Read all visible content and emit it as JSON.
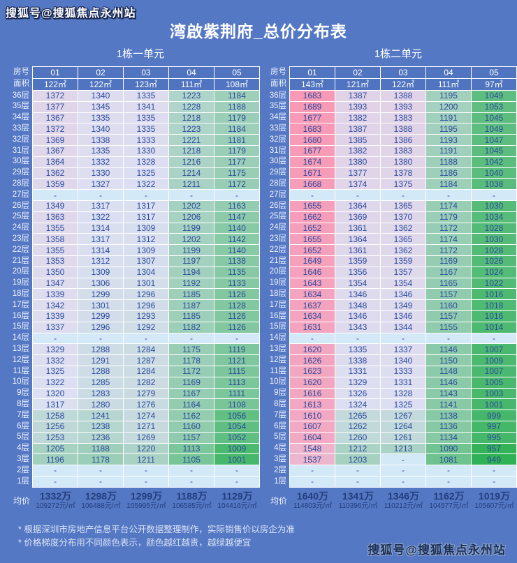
{
  "page": {
    "watermark_top": "搜狐号@搜狐焦点永州站",
    "watermark_bottom": "搜狐号@搜狐焦点永州站",
    "title": "湾啟紫荆府_总价分布表",
    "notes": [
      "* 根据深圳市房地产信息平台公开数据整理制作，实际销售价以房企为准",
      "* 价格梯度分布用不同颜色表示，颜色越红越贵，越绿越便宜"
    ]
  },
  "colors": {
    "background": "#5578C5",
    "header_fill": "#5074C0",
    "grid_border": "#FFFFFF",
    "value_text": "#2B4A9E",
    "floor_label_text": "#EDF2FB",
    "no_data_fill": "#D3E9F8",
    "scale_green": "#2FB155",
    "scale_mid": "#DCE0F2",
    "scale_pink": "#F899B5"
  },
  "color_scale": {
    "min": 949,
    "max": 1689
  },
  "chart_data": [
    {
      "type": "heatmap",
      "title": "1栋一单元",
      "corner_labels": [
        "房号",
        "面积"
      ],
      "average_label": "均价",
      "columns": [
        "01",
        "02",
        "03",
        "04",
        "05"
      ],
      "areas": [
        "122㎡",
        "122㎡",
        "123㎡",
        "111㎡",
        "108㎡"
      ],
      "floors": [
        "36层",
        "35层",
        "34层",
        "33层",
        "32层",
        "31层",
        "30层",
        "29层",
        "28层",
        "27层",
        "26层",
        "25层",
        "24层",
        "23层",
        "22层",
        "21层",
        "20层",
        "19层",
        "18层",
        "17层",
        "16层",
        "15层",
        "14层",
        "13层",
        "12层",
        "11层",
        "10层",
        "9层",
        "8层",
        "7层",
        "6层",
        "5层",
        "4层",
        "3层",
        "2层",
        "1层"
      ],
      "values": [
        [
          1372,
          1340,
          1335,
          1223,
          1184
        ],
        [
          1377,
          1345,
          1341,
          1228,
          1188
        ],
        [
          1367,
          1335,
          1335,
          1218,
          1179
        ],
        [
          1372,
          1340,
          1335,
          1223,
          1184
        ],
        [
          1369,
          1338,
          1333,
          1221,
          1181
        ],
        [
          1367,
          1335,
          1330,
          1218,
          1179
        ],
        [
          1364,
          1332,
          1328,
          1216,
          1177
        ],
        [
          1362,
          1330,
          1325,
          1214,
          1175
        ],
        [
          1359,
          1327,
          1322,
          1211,
          1172
        ],
        [
          "-",
          "-",
          "-",
          "-",
          "-"
        ],
        [
          1349,
          1317,
          1317,
          1202,
          1163
        ],
        [
          1363,
          1322,
          1317,
          1206,
          1147
        ],
        [
          1355,
          1314,
          1309,
          1199,
          1140
        ],
        [
          1358,
          1317,
          1312,
          1202,
          1142
        ],
        [
          1355,
          1314,
          1309,
          1199,
          1140
        ],
        [
          1353,
          1312,
          1307,
          1197,
          1138
        ],
        [
          1350,
          1309,
          1304,
          1194,
          1135
        ],
        [
          1347,
          1306,
          1301,
          1192,
          1133
        ],
        [
          1339,
          1299,
          1296,
          1185,
          1126
        ],
        [
          1342,
          1301,
          1296,
          1187,
          1128
        ],
        [
          1339,
          1299,
          1293,
          1185,
          1126
        ],
        [
          1337,
          1296,
          1292,
          1182,
          1126
        ],
        [
          "-",
          "-",
          "-",
          "-",
          "-"
        ],
        [
          1329,
          1288,
          1284,
          1175,
          1119
        ],
        [
          1332,
          1291,
          1287,
          1178,
          1121
        ],
        [
          1325,
          1288,
          1284,
          1172,
          1115
        ],
        [
          1322,
          1285,
          1282,
          1169,
          1113
        ],
        [
          1320,
          1283,
          1279,
          1167,
          1111
        ],
        [
          1317,
          1280,
          1276,
          1164,
          1108
        ],
        [
          1258,
          1241,
          1274,
          1162,
          1056
        ],
        [
          1256,
          1238,
          1271,
          1160,
          1054
        ],
        [
          1253,
          1236,
          1269,
          1157,
          1052
        ],
        [
          1205,
          1188,
          1220,
          1113,
          1009
        ],
        [
          1196,
          1178,
          1211,
          1105,
          1001
        ],
        [
          "-",
          "-",
          "-",
          "-",
          "-"
        ],
        [
          "-",
          "-",
          "-",
          "-",
          "-"
        ]
      ],
      "averages": [
        {
          "total": "1332万",
          "per_sqm": "109272元/㎡"
        },
        {
          "total": "1298万",
          "per_sqm": "106488元/㎡"
        },
        {
          "total": "1299万",
          "per_sqm": "105995元/㎡"
        },
        {
          "total": "1188万",
          "per_sqm": "106585元/㎡"
        },
        {
          "total": "1129万",
          "per_sqm": "104416元/㎡"
        }
      ]
    },
    {
      "type": "heatmap",
      "title": "1栋二单元",
      "corner_labels": [
        "房号",
        "面积"
      ],
      "average_label": "均价",
      "columns": [
        "01",
        "02",
        "03",
        "04",
        "05"
      ],
      "areas": [
        "143㎡",
        "121㎡",
        "122㎡",
        "111㎡",
        "97㎡"
      ],
      "floors": [
        "36层",
        "35层",
        "34层",
        "33层",
        "32层",
        "31层",
        "30层",
        "29层",
        "28层",
        "27层",
        "26层",
        "25层",
        "24层",
        "23层",
        "22层",
        "21层",
        "20层",
        "19层",
        "18层",
        "17层",
        "16层",
        "15层",
        "14层",
        "13层",
        "12层",
        "11层",
        "10层",
        "9层",
        "8层",
        "7层",
        "6层",
        "5层",
        "4层",
        "3层",
        "2层",
        "1层"
      ],
      "values": [
        [
          1683,
          1387,
          1388,
          1195,
          1049
        ],
        [
          1689,
          1393,
          1393,
          1200,
          1053
        ],
        [
          1677,
          1382,
          1383,
          1191,
          1045
        ],
        [
          1683,
          1387,
          1388,
          1195,
          1049
        ],
        [
          1680,
          1385,
          1386,
          1193,
          1047
        ],
        [
          1677,
          1382,
          1383,
          1191,
          1045
        ],
        [
          1674,
          1380,
          1380,
          1188,
          1042
        ],
        [
          1671,
          1377,
          1378,
          1186,
          1040
        ],
        [
          1668,
          1374,
          1375,
          1184,
          1038
        ],
        [
          "-",
          "-",
          "-",
          "-",
          "-"
        ],
        [
          1655,
          1364,
          1365,
          1174,
          1030
        ],
        [
          1662,
          1369,
          1370,
          1179,
          1034
        ],
        [
          1652,
          1361,
          1362,
          1172,
          1028
        ],
        [
          1655,
          1364,
          1365,
          1174,
          1030
        ],
        [
          1652,
          1361,
          1362,
          1172,
          1028
        ],
        [
          1649,
          1359,
          1359,
          1169,
          1026
        ],
        [
          1646,
          1356,
          1357,
          1167,
          1024
        ],
        [
          1643,
          1354,
          1354,
          1165,
          1022
        ],
        [
          1634,
          1346,
          1346,
          1157,
          1016
        ],
        [
          1637,
          1348,
          1349,
          1160,
          1018
        ],
        [
          1634,
          1346,
          1346,
          1157,
          1016
        ],
        [
          1631,
          1343,
          1344,
          1155,
          1014
        ],
        [
          "-",
          "-",
          "-",
          "-",
          "-"
        ],
        [
          1620,
          1335,
          1337,
          1146,
          1007
        ],
        [
          1626,
          1338,
          1340,
          1150,
          1009
        ],
        [
          1623,
          1331,
          1333,
          1148,
          1007
        ],
        [
          1620,
          1329,
          1331,
          1146,
          1005
        ],
        [
          1616,
          1326,
          1328,
          1143,
          1003
        ],
        [
          1613,
          1324,
          1325,
          1141,
          1001
        ],
        [
          1610,
          1265,
          1267,
          1138,
          999
        ],
        [
          1607,
          1262,
          1264,
          1136,
          997
        ],
        [
          1604,
          1260,
          1261,
          1134,
          995
        ],
        [
          1548,
          1212,
          1213,
          1090,
          957
        ],
        [
          1537,
          1203,
          "-",
          1081,
          949
        ],
        [
          "-",
          "-",
          "-",
          "-",
          "-"
        ],
        [
          "-",
          "-",
          "-",
          "-",
          "-"
        ]
      ],
      "averages": [
        {
          "total": "1640万",
          "per_sqm": "114803元/㎡"
        },
        {
          "total": "1341万",
          "per_sqm": "110396元/㎡"
        },
        {
          "total": "1346万",
          "per_sqm": "110212元/㎡"
        },
        {
          "total": "1162万",
          "per_sqm": "104577元/㎡"
        },
        {
          "total": "1019万",
          "per_sqm": "105607元/㎡"
        }
      ]
    }
  ]
}
